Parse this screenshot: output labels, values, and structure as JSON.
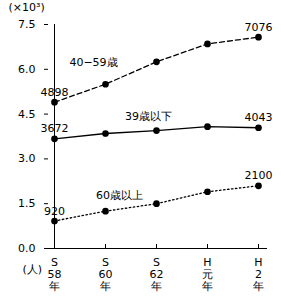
{
  "chart_data": {
    "type": "line",
    "categories": [
      "S58年",
      "S60年",
      "S62年",
      "H元年",
      "H2年"
    ],
    "y_label": "(×10³)",
    "annotations": [
      "(人)"
    ],
    "ylim": [
      0,
      7.5
    ],
    "yticks": [
      {
        "value": 0,
        "label": "0.0"
      },
      1.5,
      {
        "value": 3,
        "label": "3.0"
      },
      4.5,
      {
        "value": 6,
        "label": "6.0"
      },
      7.5
    ],
    "grid": false,
    "series": [
      {
        "name": "40−59歳",
        "color": "#000000",
        "marker": "circle",
        "line_style": "dashed",
        "values": [
          4.898,
          5.5,
          6.25,
          6.85,
          7.076
        ],
        "value_labels": [
          "4898",
          null,
          null,
          null,
          "7076"
        ]
      },
      {
        "name": "39歳以下",
        "color": "#000000",
        "marker": "circle",
        "line_style": "solid",
        "values": [
          3.672,
          3.85,
          3.95,
          4.08,
          4.043
        ],
        "value_labels": [
          "3672",
          null,
          null,
          null,
          "4043"
        ]
      },
      {
        "name": "60歳以上",
        "color": "#000000",
        "marker": "circle",
        "line_style": "dotted",
        "values": [
          0.92,
          1.25,
          1.5,
          1.9,
          2.1
        ],
        "value_labels": [
          "920",
          null,
          null,
          null,
          "2100"
        ]
      }
    ]
  }
}
